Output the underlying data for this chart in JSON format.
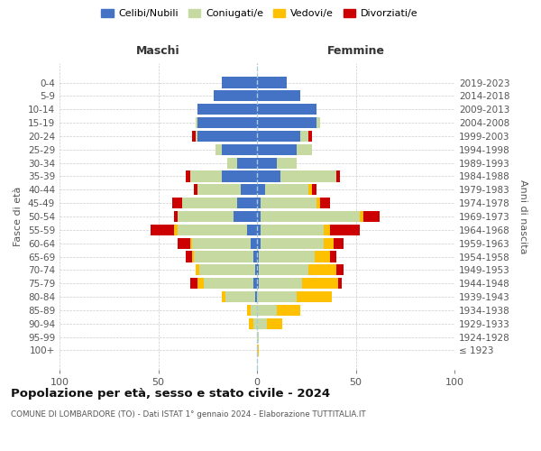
{
  "age_groups": [
    "100+",
    "95-99",
    "90-94",
    "85-89",
    "80-84",
    "75-79",
    "70-74",
    "65-69",
    "60-64",
    "55-59",
    "50-54",
    "45-49",
    "40-44",
    "35-39",
    "30-34",
    "25-29",
    "20-24",
    "15-19",
    "10-14",
    "5-9",
    "0-4"
  ],
  "birth_years": [
    "≤ 1923",
    "1924-1928",
    "1929-1933",
    "1934-1938",
    "1939-1943",
    "1944-1948",
    "1949-1953",
    "1954-1958",
    "1959-1963",
    "1964-1968",
    "1969-1973",
    "1974-1978",
    "1979-1983",
    "1984-1988",
    "1989-1993",
    "1994-1998",
    "1999-2003",
    "2004-2008",
    "2009-2013",
    "2014-2018",
    "2019-2023"
  ],
  "colors": {
    "celibi": "#4472c4",
    "coniugati": "#c5d9a0",
    "vedovi": "#ffc000",
    "divorziati": "#cc0000"
  },
  "males": {
    "celibi": [
      0,
      0,
      0,
      0,
      1,
      2,
      1,
      2,
      3,
      5,
      12,
      10,
      8,
      18,
      10,
      18,
      30,
      30,
      30,
      22,
      18
    ],
    "coniugati": [
      0,
      0,
      2,
      3,
      15,
      25,
      28,
      30,
      30,
      35,
      28,
      28,
      22,
      16,
      5,
      3,
      1,
      1,
      0,
      0,
      0
    ],
    "vedovi": [
      0,
      0,
      2,
      2,
      2,
      3,
      2,
      1,
      1,
      2,
      0,
      0,
      0,
      0,
      0,
      0,
      0,
      0,
      0,
      0,
      0
    ],
    "divorziati": [
      0,
      0,
      0,
      0,
      0,
      4,
      0,
      3,
      6,
      12,
      2,
      5,
      2,
      2,
      0,
      0,
      2,
      0,
      0,
      0,
      0
    ]
  },
  "females": {
    "celibi": [
      0,
      0,
      0,
      0,
      0,
      1,
      1,
      1,
      2,
      2,
      2,
      2,
      4,
      12,
      10,
      20,
      22,
      30,
      30,
      22,
      15
    ],
    "coniugati": [
      0,
      1,
      5,
      10,
      20,
      22,
      25,
      28,
      32,
      32,
      50,
      28,
      22,
      28,
      10,
      8,
      4,
      2,
      0,
      0,
      0
    ],
    "vedovi": [
      1,
      0,
      8,
      12,
      18,
      18,
      14,
      8,
      5,
      3,
      2,
      2,
      2,
      0,
      0,
      0,
      0,
      0,
      0,
      0,
      0
    ],
    "divorziati": [
      0,
      0,
      0,
      0,
      0,
      2,
      4,
      3,
      5,
      15,
      8,
      5,
      2,
      2,
      0,
      0,
      2,
      0,
      0,
      0,
      0
    ]
  },
  "xlim": [
    -100,
    100
  ],
  "xticks": [
    -100,
    -50,
    0,
    50,
    100
  ],
  "xticklabels": [
    "100",
    "50",
    "0",
    "50",
    "100"
  ],
  "title": "Popolazione per età, sesso e stato civile - 2024",
  "subtitle": "COMUNE DI LOMBARDORE (TO) - Dati ISTAT 1° gennaio 2024 - Elaborazione TUTTITALIA.IT",
  "ylabel_left": "Fasce di età",
  "ylabel_right": "Anni di nascita",
  "label_maschi": "Maschi",
  "label_femmine": "Femmine",
  "legend_labels": [
    "Celibi/Nubili",
    "Coniugati/e",
    "Vedovi/e",
    "Divorziati/e"
  ],
  "bg_color": "#ffffff",
  "grid_color": "#cccccc"
}
